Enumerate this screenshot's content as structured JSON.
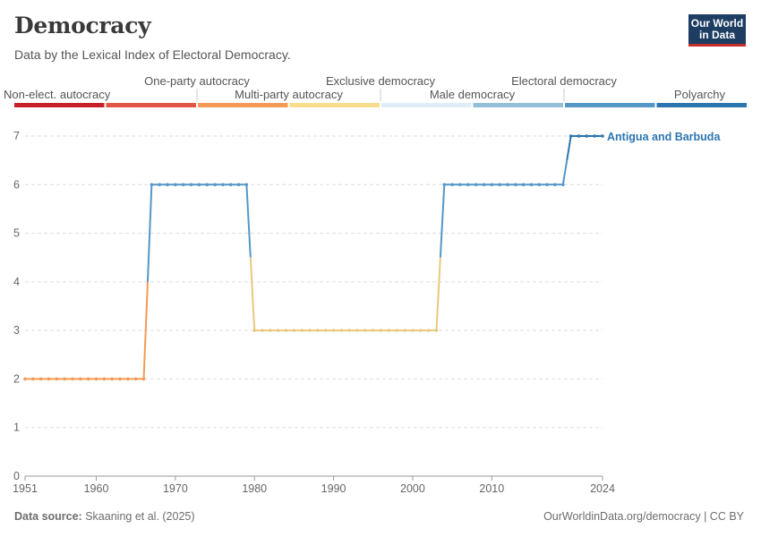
{
  "header": {
    "title": "Democracy",
    "subtitle": "Data by the Lexical Index of Electoral Democracy.",
    "logo_line1": "Our World",
    "logo_line2": "in Data"
  },
  "footer": {
    "source_label": "Data source:",
    "source_text": "Skaaning et al. (2025)",
    "credit": "OurWorldinData.org/democracy | CC BY"
  },
  "colors": {
    "levels": [
      "#c8202a",
      "#e05545",
      "#f39a55",
      "#f7dd8c",
      "#deedf7",
      "#93bfd8",
      "#5597c6",
      "#2c75b0"
    ],
    "grid": "#dddddd",
    "axis": "#666666"
  },
  "chart_data": {
    "type": "line",
    "title": "Democracy",
    "subtitle": "Data by the Lexical Index of Electoral Democracy.",
    "ylim": [
      0,
      7
    ],
    "xlim": [
      1951,
      2024
    ],
    "x_ticks": [
      1951,
      1960,
      1970,
      1980,
      1990,
      2000,
      2010,
      2024
    ],
    "y_ticks": [
      0,
      1,
      2,
      3,
      4,
      5,
      6,
      7
    ],
    "grid": true,
    "legend_title_position": "top",
    "legend_categories": [
      "Non-elect. autocracy",
      "One-party autocracy",
      "Multi-party autocracy",
      "Exclusive democracy",
      "Male democracy",
      "Electoral democracy",
      "Polyarchy"
    ],
    "series": [
      {
        "name": "Antigua and Barbuda",
        "segments": [
          {
            "start": 1951,
            "end": 1966,
            "value": 2
          },
          {
            "start": 1967,
            "end": 1979,
            "value": 6
          },
          {
            "start": 1980,
            "end": 2003,
            "value": 3
          },
          {
            "start": 2004,
            "end": 2019,
            "value": 6
          },
          {
            "start": 2020,
            "end": 2024,
            "value": 7
          }
        ]
      }
    ]
  }
}
